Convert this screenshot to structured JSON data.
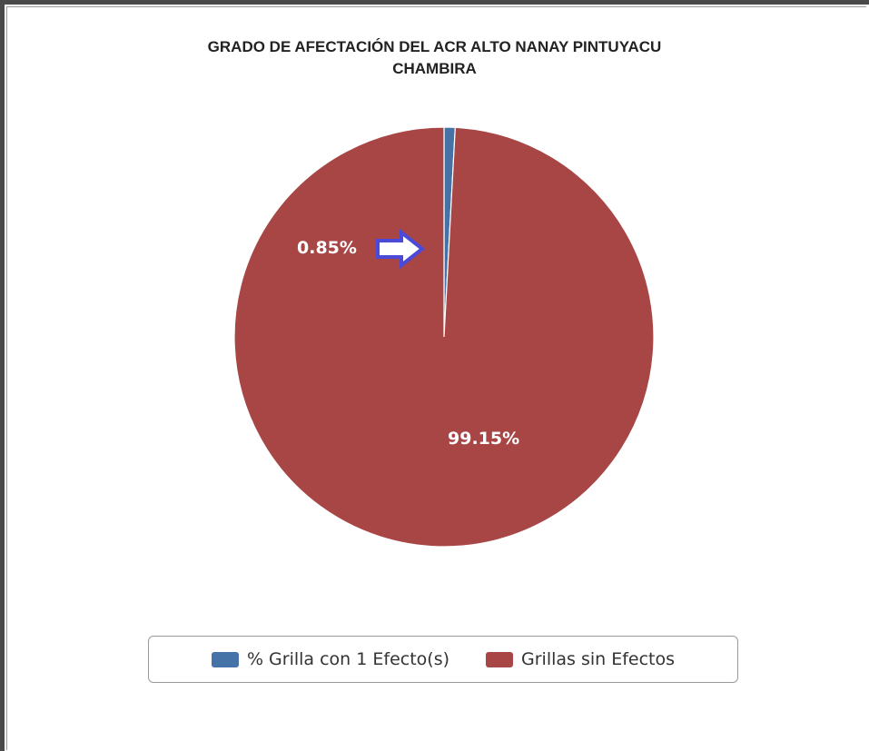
{
  "chart_data": {
    "type": "pie",
    "title": [
      "GRADO DE AFECTACIÓN DEL ACR ALTO NANAY PINTUYACU",
      "CHAMBIRA"
    ],
    "slices": [
      {
        "name": "% Grilla con 1 Efecto(s)",
        "value": 0.85,
        "label": "0.85%",
        "color": "#4572a7"
      },
      {
        "name": "Grillas sin Efectos",
        "value": 99.15,
        "label": "99.15%",
        "color": "#a84646"
      }
    ],
    "legend": {
      "placement": "bottom"
    },
    "annotation": {
      "type": "arrow",
      "color": "#4b49d8",
      "points_to": "% Grilla con 1 Efecto(s)"
    }
  }
}
